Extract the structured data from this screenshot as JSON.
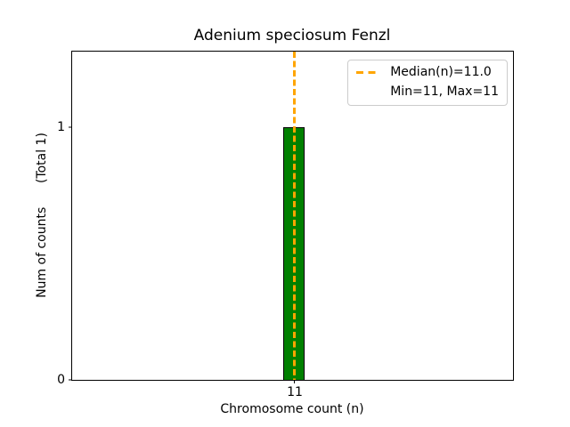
{
  "chart_data": {
    "type": "bar",
    "title": "Adenium speciosum Fenzl",
    "xlabel": "Chromosome count (n)",
    "ylabel": "Num of counts      (Total 1)",
    "categories": [
      "11"
    ],
    "values": [
      1
    ],
    "total_counts": 1,
    "xticks": [
      "11"
    ],
    "yticks": [
      0,
      1
    ],
    "ylim": [
      0,
      1.3
    ],
    "median_n": 11.0,
    "min_n": 11,
    "max_n": 11,
    "grid": false,
    "bar_color": "#008000",
    "bar_edge_color": "#000000",
    "median_line_color": "#FFA500",
    "median_line_style": "dashed",
    "legend": {
      "position": "upper right",
      "entries": [
        "Median(n)=11.0",
        "Min=11, Max=11"
      ]
    }
  }
}
